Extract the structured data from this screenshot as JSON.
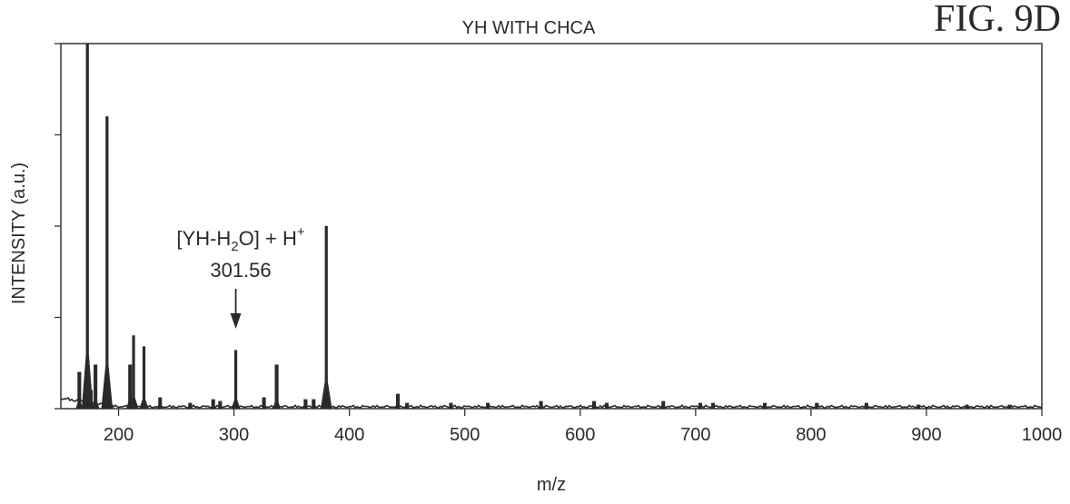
{
  "figure_label": "FIG. 9D",
  "chart_data": {
    "type": "line",
    "title": "YH WITH CHCA",
    "xlabel": "m/z",
    "ylabel": "INTENSITY (a.u.)",
    "xlim": [
      150,
      1000
    ],
    "ylim": [
      0,
      100
    ],
    "x_ticks": [
      200,
      300,
      400,
      500,
      600,
      700,
      800,
      900,
      1000
    ],
    "y_tick_count": 5,
    "y_tick_labels_shown": false,
    "grid": false,
    "series": [
      {
        "peaks": [
          {
            "x": 166,
            "y": 10
          },
          {
            "x": 173,
            "y": 100
          },
          {
            "x": 176,
            "y": 5
          },
          {
            "x": 180,
            "y": 12
          },
          {
            "x": 190,
            "y": 80
          },
          {
            "x": 210,
            "y": 12
          },
          {
            "x": 213,
            "y": 20
          },
          {
            "x": 222,
            "y": 17
          },
          {
            "x": 236,
            "y": 3
          },
          {
            "x": 262,
            "y": 1.5
          },
          {
            "x": 282,
            "y": 2.5
          },
          {
            "x": 288,
            "y": 2
          },
          {
            "x": 301.56,
            "y": 16
          },
          {
            "x": 326,
            "y": 3
          },
          {
            "x": 337,
            "y": 12
          },
          {
            "x": 362,
            "y": 2.5
          },
          {
            "x": 369,
            "y": 2.5
          },
          {
            "x": 380,
            "y": 50
          },
          {
            "x": 442,
            "y": 4
          },
          {
            "x": 450,
            "y": 1.5
          },
          {
            "x": 488,
            "y": 1.5
          },
          {
            "x": 520,
            "y": 1.5
          },
          {
            "x": 566,
            "y": 2
          },
          {
            "x": 612,
            "y": 2
          },
          {
            "x": 623,
            "y": 1.5
          },
          {
            "x": 672,
            "y": 2
          },
          {
            "x": 704,
            "y": 1.5
          },
          {
            "x": 715,
            "y": 1.5
          },
          {
            "x": 760,
            "y": 1.5
          },
          {
            "x": 805,
            "y": 1.5
          },
          {
            "x": 848,
            "y": 1.5
          },
          {
            "x": 893,
            "y": 1
          },
          {
            "x": 935,
            "y": 1
          },
          {
            "x": 972,
            "y": 1
          }
        ]
      }
    ],
    "annotations": [
      {
        "line1_pre": "[YH-H",
        "line1_sub": "2",
        "line1_mid": "O] + H",
        "line1_sup": "+",
        "value_label": "301.56",
        "x": 301.56,
        "arrow": "down"
      }
    ]
  }
}
